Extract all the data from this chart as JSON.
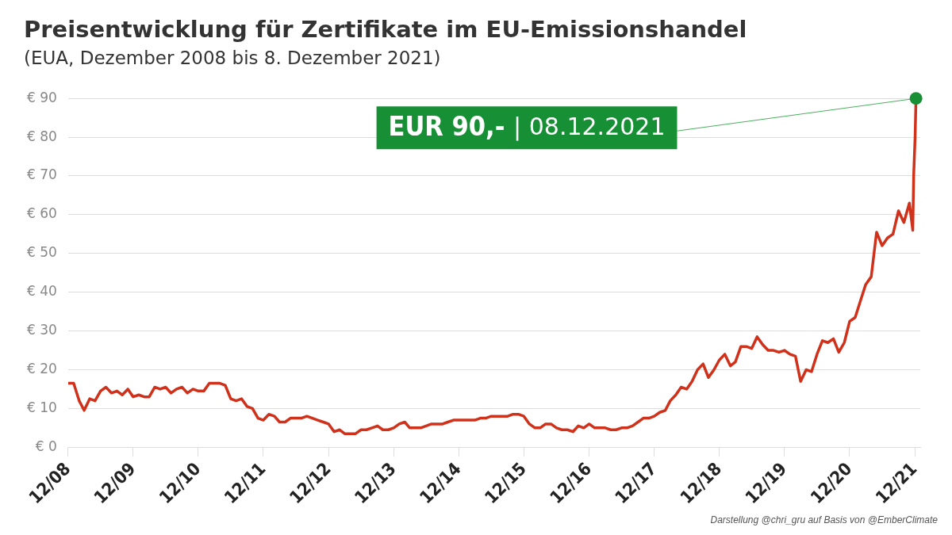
{
  "chart_data": {
    "type": "line",
    "title": "Preisentwicklung für Zertifikate im EU-Emissionshandel",
    "subtitle": "(EUA, Dezember 2008 bis 8. Dezember 2021)",
    "x": [
      "2008-12",
      "2009-01",
      "2009-02",
      "2009-03",
      "2009-04",
      "2009-05",
      "2009-06",
      "2009-07",
      "2009-08",
      "2009-09",
      "2009-10",
      "2009-11",
      "2009-12",
      "2010-01",
      "2010-02",
      "2010-03",
      "2010-04",
      "2010-05",
      "2010-06",
      "2010-07",
      "2010-08",
      "2010-09",
      "2010-10",
      "2010-11",
      "2010-12",
      "2011-01",
      "2011-02",
      "2011-03",
      "2011-04",
      "2011-05",
      "2011-06",
      "2011-07",
      "2011-08",
      "2011-09",
      "2011-10",
      "2011-11",
      "2011-12",
      "2012-01",
      "2012-02",
      "2012-03",
      "2012-04",
      "2012-05",
      "2012-06",
      "2012-07",
      "2012-08",
      "2012-09",
      "2012-10",
      "2012-11",
      "2012-12",
      "2013-01",
      "2013-02",
      "2013-03",
      "2013-04",
      "2013-05",
      "2013-06",
      "2013-07",
      "2013-08",
      "2013-09",
      "2013-10",
      "2013-11",
      "2013-12",
      "2014-01",
      "2014-02",
      "2014-03",
      "2014-04",
      "2014-05",
      "2014-06",
      "2014-07",
      "2014-08",
      "2014-09",
      "2014-10",
      "2014-11",
      "2014-12",
      "2015-01",
      "2015-02",
      "2015-03",
      "2015-04",
      "2015-05",
      "2015-06",
      "2015-07",
      "2015-08",
      "2015-09",
      "2015-10",
      "2015-11",
      "2015-12",
      "2016-01",
      "2016-02",
      "2016-03",
      "2016-04",
      "2016-05",
      "2016-06",
      "2016-07",
      "2016-08",
      "2016-09",
      "2016-10",
      "2016-11",
      "2016-12",
      "2017-01",
      "2017-02",
      "2017-03",
      "2017-04",
      "2017-05",
      "2017-06",
      "2017-07",
      "2017-08",
      "2017-09",
      "2017-10",
      "2017-11",
      "2017-12",
      "2018-01",
      "2018-02",
      "2018-03",
      "2018-04",
      "2018-05",
      "2018-06",
      "2018-07",
      "2018-08",
      "2018-09",
      "2018-10",
      "2018-11",
      "2018-12",
      "2019-01",
      "2019-02",
      "2019-03",
      "2019-04",
      "2019-05",
      "2019-06",
      "2019-07",
      "2019-08",
      "2019-09",
      "2019-10",
      "2019-11",
      "2019-12",
      "2020-01",
      "2020-02",
      "2020-03",
      "2020-04",
      "2020-05",
      "2020-06",
      "2020-07",
      "2020-08",
      "2020-09",
      "2020-10",
      "2020-11",
      "2020-12",
      "2021-01",
      "2021-02",
      "2021-03",
      "2021-04",
      "2021-05",
      "2021-06",
      "2021-07",
      "2021-08",
      "2021-09",
      "2021-10",
      "2021-11",
      "2021-11-20",
      "2021-11-25",
      "2021-12-03",
      "2021-12-08"
    ],
    "series": [
      {
        "color": "#d0311b",
        "values": [
          16.5,
          16.5,
          12,
          9.5,
          12.5,
          12,
          14.5,
          15.5,
          14,
          14.5,
          13.5,
          15,
          13,
          13.5,
          13,
          13,
          15.5,
          15,
          15.5,
          14,
          15,
          15.5,
          14,
          15,
          14.5,
          14.5,
          16.5,
          16.5,
          16.5,
          16,
          12.5,
          12,
          12.5,
          10.5,
          10,
          7.5,
          7,
          8.5,
          8,
          6.5,
          6.5,
          7.5,
          7.5,
          7.5,
          8,
          7.5,
          7,
          6.5,
          6,
          4,
          4.5,
          3.5,
          3.5,
          3.5,
          4.5,
          4.5,
          5,
          5.5,
          4.5,
          4.5,
          5,
          6,
          6.5,
          5,
          5,
          5,
          5.5,
          6,
          6,
          6,
          6.5,
          7,
          7,
          7,
          7,
          7,
          7.5,
          7.5,
          8,
          8,
          8,
          8,
          8.5,
          8.5,
          8,
          6,
          5,
          5,
          6,
          6,
          5,
          4.5,
          4.5,
          4,
          5.5,
          5,
          6,
          5,
          5,
          5,
          4.5,
          4.5,
          5,
          5,
          5.5,
          6.5,
          7.5,
          7.5,
          8,
          9,
          9.5,
          12,
          13.5,
          15.5,
          15,
          17,
          20,
          21.5,
          18,
          20,
          22.5,
          24,
          21,
          22,
          26,
          26,
          25.5,
          28.5,
          26.5,
          25,
          25,
          24.5,
          25,
          24,
          23.5,
          17,
          20,
          19.5,
          24,
          27.5,
          27,
          28,
          24.5,
          27,
          32.5,
          33.5,
          38,
          42,
          44,
          55.5,
          52,
          54,
          55,
          61,
          58,
          63,
          56,
          70,
          80,
          90
        ]
      }
    ],
    "xlim": [
      "2008-12",
      "2022-01"
    ],
    "xticks": [
      {
        "value": "2008-12",
        "label": "12/08"
      },
      {
        "value": "2009-12",
        "label": "12/09"
      },
      {
        "value": "2010-12",
        "label": "12/10"
      },
      {
        "value": "2011-12",
        "label": "12/11"
      },
      {
        "value": "2012-12",
        "label": "12/12"
      },
      {
        "value": "2013-12",
        "label": "12/13"
      },
      {
        "value": "2014-12",
        "label": "12/14"
      },
      {
        "value": "2015-12",
        "label": "12/15"
      },
      {
        "value": "2016-12",
        "label": "12/16"
      },
      {
        "value": "2017-12",
        "label": "12/17"
      },
      {
        "value": "2018-12",
        "label": "12/18"
      },
      {
        "value": "2019-12",
        "label": "12/19"
      },
      {
        "value": "2020-12",
        "label": "12/20"
      },
      {
        "value": "2021-12",
        "label": "12/21"
      }
    ],
    "ylim": [
      0,
      90
    ],
    "yticks": [
      {
        "value": 0,
        "label": "€ 0"
      },
      {
        "value": 10,
        "label": "€ 10"
      },
      {
        "value": 20,
        "label": "€ 20"
      },
      {
        "value": 30,
        "label": "€ 30"
      },
      {
        "value": 40,
        "label": "€ 40"
      },
      {
        "value": 50,
        "label": "€ 50"
      },
      {
        "value": 60,
        "label": "€ 60"
      },
      {
        "value": 70,
        "label": "€ 70"
      },
      {
        "value": 80,
        "label": "€ 80"
      },
      {
        "value": 90,
        "label": "€ 90"
      }
    ],
    "grid": "y",
    "legend": false,
    "marker": "none",
    "line_style": "solid",
    "annotations": [
      {
        "text": "EUR 90,- | 08.12.2021",
        "x": "2021-12-08",
        "y": 90
      },
      "Darstellung @chri_gru auf Basis von @EmberClimate"
    ]
  }
}
